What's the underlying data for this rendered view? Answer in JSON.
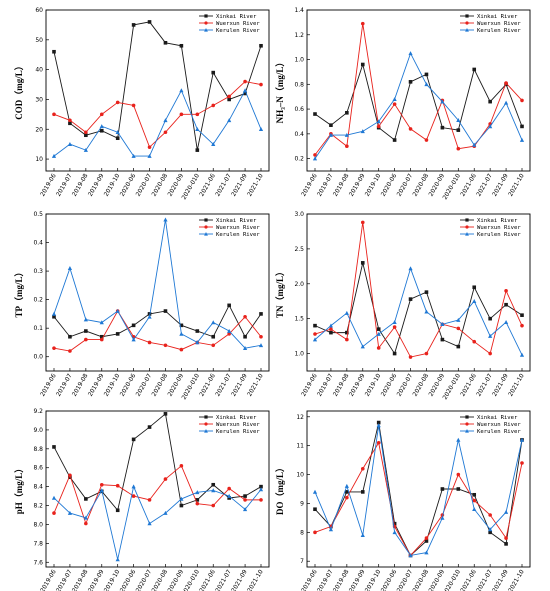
{
  "colors": {
    "Xinkai River": "#1a1a1a",
    "Wuerxun River": "#e8221c",
    "Kerulen River": "#1f78d4"
  },
  "x_labels": [
    "2019-06",
    "2019-07",
    "2019-08",
    "2019-09",
    "2019-10",
    "2020-06",
    "2020-07",
    "2020-08",
    "2020-09",
    "2020-010",
    "2021-06",
    "2021-07",
    "2021-09",
    "2021-10"
  ],
  "chart_data": [
    {
      "type": "line",
      "id": "cod",
      "ylabel": "COD（mg/L）",
      "ylim": [
        6,
        60
      ],
      "yticks": [
        10,
        20,
        30,
        40,
        50,
        60
      ],
      "tick_labels": [
        "10",
        "20",
        "30",
        "40",
        "50",
        "60"
      ],
      "legend_position": "top-right",
      "series": [
        {
          "name": "Xinkai River",
          "values": [
            46,
            22,
            18,
            19.5,
            17,
            55,
            56,
            49,
            48,
            13,
            39,
            30,
            32,
            48
          ]
        },
        {
          "name": "Wuerxun River",
          "values": [
            25,
            23,
            19,
            25,
            29,
            28,
            14,
            19,
            25,
            25,
            28,
            31,
            36,
            35
          ]
        },
        {
          "name": "Kerulen River",
          "values": [
            11,
            15,
            13,
            21,
            19,
            11,
            11,
            23,
            33,
            20,
            15,
            23,
            33,
            20
          ]
        }
      ]
    },
    {
      "type": "line",
      "id": "nh3n",
      "ylabel": "NH₃–N（mg/L）",
      "ylim": [
        0.1,
        1.4
      ],
      "yticks": [
        0.2,
        0.4,
        0.6,
        0.8,
        1.0,
        1.2,
        1.4
      ],
      "tick_labels": [
        "0.2",
        "0.4",
        "0.6",
        "0.8",
        "1.0",
        "1.2",
        "1.4"
      ],
      "legend_position": "top-right",
      "series": [
        {
          "name": "Xinkai River",
          "values": [
            0.56,
            0.47,
            0.57,
            0.96,
            0.45,
            0.35,
            0.82,
            0.88,
            0.45,
            0.43,
            0.92,
            0.66,
            0.8,
            0.46
          ]
        },
        {
          "name": "Wuerxun River",
          "values": [
            0.23,
            0.4,
            0.3,
            1.29,
            0.46,
            0.64,
            0.44,
            0.35,
            0.67,
            0.28,
            0.3,
            0.48,
            0.81,
            0.67
          ]
        },
        {
          "name": "Kerulen River",
          "values": [
            0.2,
            0.39,
            0.39,
            0.42,
            0.5,
            0.68,
            1.05,
            0.8,
            0.66,
            0.51,
            0.31,
            0.46,
            0.65,
            0.35
          ]
        }
      ]
    },
    {
      "type": "line",
      "id": "tp",
      "ylabel": "TP（mg/L）",
      "ylim": [
        -0.05,
        0.5
      ],
      "yticks": [
        0.0,
        0.1,
        0.2,
        0.3,
        0.4,
        0.5
      ],
      "tick_labels": [
        "0.0",
        "0.1",
        "0.2",
        "0.3",
        "0.4",
        "0.5"
      ],
      "legend_position": "top-right",
      "series": [
        {
          "name": "Xinkai River",
          "values": [
            0.14,
            0.07,
            0.09,
            0.07,
            0.08,
            0.11,
            0.15,
            0.16,
            0.11,
            0.09,
            0.07,
            0.18,
            0.07,
            0.15
          ]
        },
        {
          "name": "Wuerxun River",
          "values": [
            0.03,
            0.02,
            0.06,
            0.06,
            0.16,
            0.07,
            0.05,
            0.04,
            0.025,
            0.05,
            0.04,
            0.08,
            0.14,
            0.07
          ]
        },
        {
          "name": "Kerulen River",
          "values": [
            0.15,
            0.31,
            0.13,
            0.12,
            0.16,
            0.06,
            0.14,
            0.48,
            0.08,
            0.05,
            0.12,
            0.09,
            0.03,
            0.04
          ]
        }
      ]
    },
    {
      "type": "line",
      "id": "tn",
      "ylabel": "TN（mg/L）",
      "ylim": [
        0.75,
        3.0
      ],
      "yticks": [
        1.0,
        1.5,
        2.0,
        2.5,
        3.0
      ],
      "tick_labels": [
        "1.0",
        "1.5",
        "2.0",
        "2.5",
        "3.0"
      ],
      "legend_position": "top-right",
      "series": [
        {
          "name": "Xinkai River",
          "values": [
            1.4,
            1.3,
            1.3,
            2.3,
            1.35,
            1.0,
            1.78,
            1.88,
            1.2,
            1.1,
            1.95,
            1.5,
            1.7,
            1.55
          ]
        },
        {
          "name": "Wuerxun River",
          "values": [
            1.28,
            1.35,
            1.2,
            2.88,
            1.08,
            1.38,
            0.95,
            1.0,
            1.42,
            1.36,
            1.17,
            1.0,
            1.9,
            1.4
          ]
        },
        {
          "name": "Kerulen River",
          "values": [
            1.2,
            1.4,
            1.58,
            1.1,
            1.28,
            1.45,
            2.22,
            1.6,
            1.42,
            1.48,
            1.75,
            1.25,
            1.45,
            0.98
          ]
        }
      ]
    },
    {
      "type": "line",
      "id": "ph",
      "ylabel": "pH（mg/L）",
      "ylim": [
        7.55,
        9.2
      ],
      "yticks": [
        7.6,
        7.8,
        8.0,
        8.2,
        8.4,
        8.6,
        8.8,
        9.0,
        9.2
      ],
      "tick_labels": [
        "7.6",
        "7.8",
        "8.0",
        "8.2",
        "8.4",
        "8.6",
        "8.8",
        "9.0",
        "9.2"
      ],
      "legend_position": "top-right",
      "series": [
        {
          "name": "Xinkai River",
          "values": [
            8.82,
            8.5,
            8.27,
            8.35,
            8.15,
            8.9,
            9.03,
            9.17,
            8.2,
            8.26,
            8.42,
            8.28,
            8.3,
            8.4
          ]
        },
        {
          "name": "Wuerxun River",
          "values": [
            8.12,
            8.52,
            8.01,
            8.42,
            8.41,
            8.3,
            8.26,
            8.48,
            8.62,
            8.22,
            8.2,
            8.38,
            8.26,
            8.26
          ]
        },
        {
          "name": "Kerulen River",
          "values": [
            8.28,
            8.12,
            8.07,
            8.36,
            7.63,
            8.4,
            8.01,
            8.12,
            8.27,
            8.34,
            8.36,
            8.3,
            8.16,
            8.37
          ]
        }
      ]
    },
    {
      "type": "line",
      "id": "do",
      "ylabel": "DO（mg/L）",
      "ylim": [
        6.8,
        12.2
      ],
      "yticks": [
        7,
        8,
        9,
        10,
        11,
        12
      ],
      "tick_labels": [
        "7",
        "8",
        "9",
        "10",
        "11",
        "12"
      ],
      "legend_position": "top-right",
      "series": [
        {
          "name": "Xinkai River",
          "values": [
            8.8,
            8.2,
            9.4,
            9.4,
            11.8,
            8.3,
            7.2,
            7.7,
            9.5,
            9.5,
            9.3,
            8.0,
            7.6,
            11.2
          ]
        },
        {
          "name": "Wuerxun River",
          "values": [
            8.0,
            8.2,
            9.2,
            10.2,
            11.1,
            8.2,
            7.2,
            7.8,
            8.6,
            10.0,
            9.1,
            8.6,
            7.8,
            10.4
          ]
        },
        {
          "name": "Kerulen River",
          "values": [
            9.4,
            8.1,
            9.6,
            7.9,
            11.7,
            8.0,
            7.2,
            7.3,
            8.5,
            11.2,
            8.8,
            8.1,
            8.7,
            11.2
          ]
        }
      ]
    }
  ]
}
